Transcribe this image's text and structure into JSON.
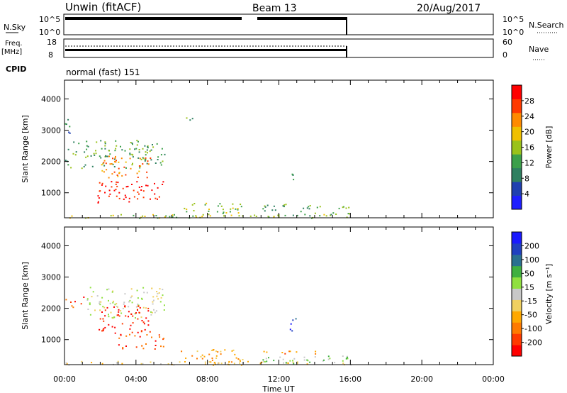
{
  "header": {
    "title": "Unwin (fitACF)",
    "beam": "Beam 13",
    "date": "20/Aug/2017"
  },
  "labels": {
    "nsky": "N.Sky",
    "nsearch": "N.Search",
    "freq": "Freq.",
    "freq_unit": "[MHz]",
    "nave": "Nave",
    "cpid": "CPID",
    "cpid_value": "normal (fast) 151",
    "nsky_ticks": [
      "10^5",
      "10^0"
    ],
    "freq_ticks": [
      "18",
      "8"
    ],
    "nave_ticks": [
      "60",
      "0"
    ]
  },
  "chart_data": [
    {
      "type": "heatmap",
      "name": "power-panel",
      "xlabel": "",
      "ylabel": "Slant Range [km]",
      "yticks": [
        1000,
        2000,
        3000,
        4000
      ],
      "ylim": [
        200,
        4600
      ],
      "xlim": [
        0,
        24
      ],
      "colorbar": {
        "label": "Power [dB]",
        "ticks": [
          "4",
          "8",
          "12",
          "16",
          "20",
          "24",
          "28"
        ],
        "colors": [
          "#1f1fff",
          "#2040b0",
          "#2f8060",
          "#3ca04a",
          "#9ac21a",
          "#f0c000",
          "#ff8a00",
          "#ff3a00",
          "#ff0000"
        ]
      },
      "scatter_regions": [
        {
          "t0": 0.0,
          "t1": 5.6,
          "r0": 1800,
          "r1": 2700,
          "level": 3
        },
        {
          "t0": 2.0,
          "t1": 4.8,
          "r0": 1500,
          "r1": 2200,
          "level": 6
        },
        {
          "t0": 1.8,
          "t1": 5.6,
          "r0": 700,
          "r1": 1400,
          "level": 8
        },
        {
          "t0": 0.0,
          "t1": 0.4,
          "r0": 2900,
          "r1": 3400,
          "level": 2
        },
        {
          "t0": 6.8,
          "t1": 7.2,
          "r0": 3300,
          "r1": 3500,
          "level": 3
        },
        {
          "t0": 6.5,
          "t1": 10.0,
          "r0": 250,
          "r1": 700,
          "level": 4
        },
        {
          "t0": 11.0,
          "t1": 16.0,
          "r0": 250,
          "r1": 650,
          "level": 3
        },
        {
          "t0": 12.6,
          "t1": 13.0,
          "r0": 1300,
          "r1": 1800,
          "level": 2
        },
        {
          "t0": 0.0,
          "t1": 16.0,
          "r0": 200,
          "r1": 320,
          "level": 4
        }
      ]
    },
    {
      "type": "heatmap",
      "name": "velocity-panel",
      "xlabel": "Time UT",
      "ylabel": "Slant Range [km]",
      "yticks": [
        1000,
        2000,
        3000,
        4000
      ],
      "ylim": [
        200,
        4600
      ],
      "xlim": [
        0,
        24
      ],
      "xticklabels": [
        "00:00",
        "04:00",
        "08:00",
        "12:00",
        "16:00",
        "20:00",
        "00:00"
      ],
      "colorbar": {
        "label": "Velocity [m s⁻¹]",
        "ticks": [
          "-200",
          "-100",
          "-50",
          "-15",
          "15",
          "50",
          "100",
          "200"
        ],
        "colors": [
          "#ff0000",
          "#ff3a00",
          "#ff7a00",
          "#ffa800",
          "#f0d060",
          "#c8c8c8",
          "#90e040",
          "#40b040",
          "#2a7090",
          "#2040c0",
          "#1a1aff"
        ]
      },
      "scatter_regions": [
        {
          "t0": 0.0,
          "t1": 1.2,
          "r0": 2000,
          "r1": 2400,
          "level": 1
        },
        {
          "t0": 0.0,
          "t1": 0.3,
          "r0": 3000,
          "r1": 3300,
          "level": 1
        },
        {
          "t0": 1.2,
          "t1": 5.6,
          "r0": 1700,
          "r1": 2700,
          "level": 5
        },
        {
          "t0": 1.8,
          "t1": 4.8,
          "r0": 1200,
          "r1": 2100,
          "level": 0
        },
        {
          "t0": 3.0,
          "t1": 5.6,
          "r0": 700,
          "r1": 1200,
          "level": 1
        },
        {
          "t0": 6.5,
          "t1": 10.0,
          "r0": 250,
          "r1": 700,
          "level": 3
        },
        {
          "t0": 11.0,
          "t1": 14.5,
          "r0": 550,
          "r1": 650,
          "level": 2
        },
        {
          "t0": 11.0,
          "t1": 16.0,
          "r0": 250,
          "r1": 500,
          "level": 6
        },
        {
          "t0": 12.6,
          "t1": 13.0,
          "r0": 1300,
          "r1": 1700,
          "level": 9
        },
        {
          "t0": 0.0,
          "t1": 16.0,
          "r0": 200,
          "r1": 320,
          "level": 4
        }
      ]
    }
  ]
}
